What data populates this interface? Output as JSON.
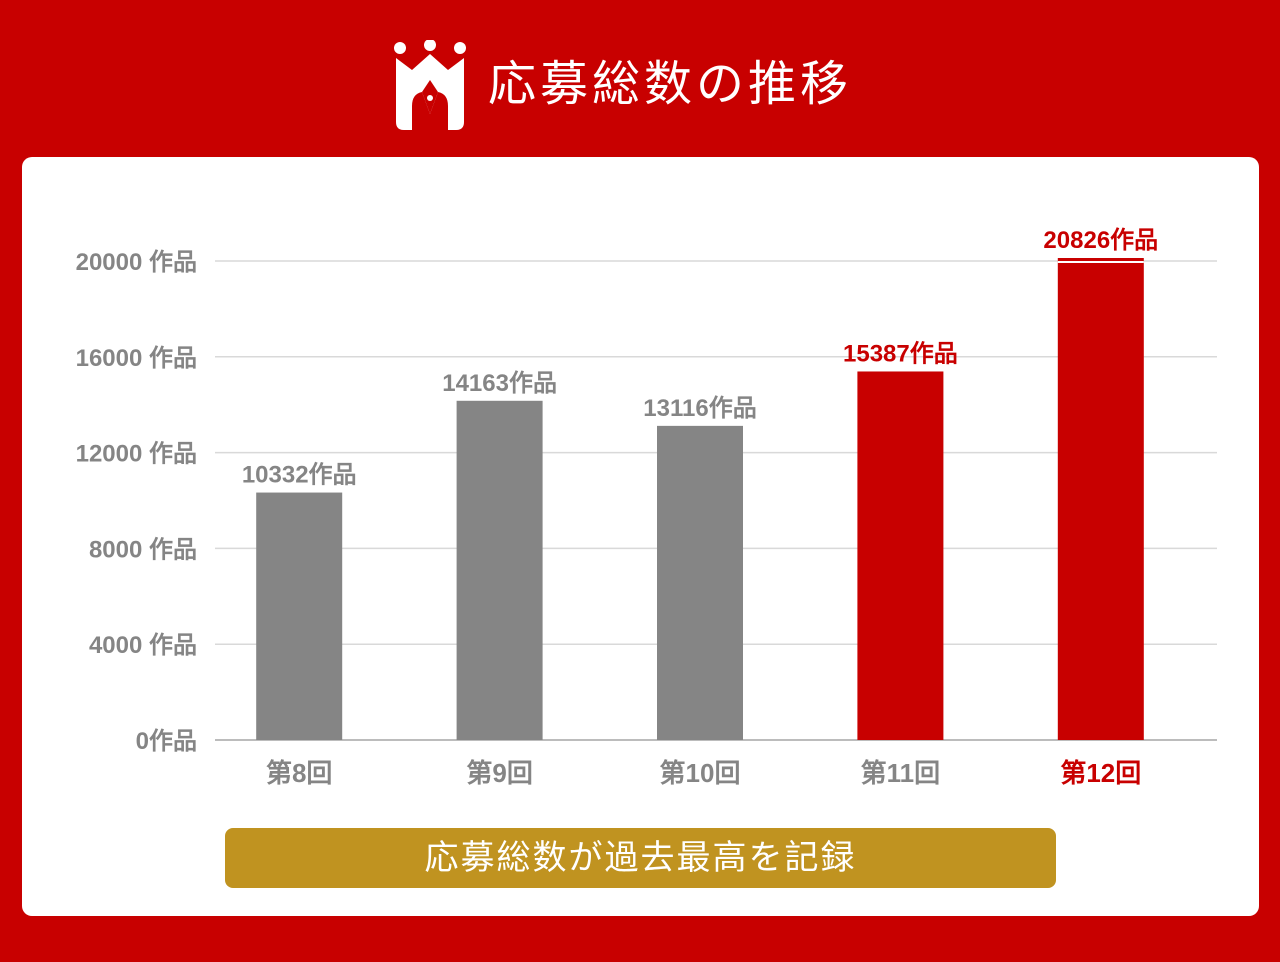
{
  "header": {
    "title": "応募総数の推移",
    "logo_icon": "crown-pen-icon"
  },
  "colors": {
    "background": "#c80000",
    "highlight": "#c80000",
    "normal": "#858585",
    "banner": "#c09320",
    "grid": "#d9d9d9"
  },
  "chart_data": {
    "type": "bar",
    "categories": [
      "第8回",
      "第9回",
      "第10回",
      "第11回",
      "第12回"
    ],
    "values": [
      10332,
      14163,
      13116,
      15387,
      20826
    ],
    "data_labels": [
      "10332作品",
      "14163作品",
      "13116作品",
      "15387作品",
      "20826作品"
    ],
    "highlighted": [
      false,
      false,
      false,
      true,
      true
    ],
    "yticks": [
      0,
      4000,
      8000,
      12000,
      16000,
      20000
    ],
    "ytick_labels": [
      "0作品",
      "4000 作品",
      "8000 作品",
      "12000 作品",
      "16000 作品",
      "20000 作品"
    ],
    "ylim": [
      0,
      20000
    ],
    "grid": true,
    "title": "",
    "xlabel": "",
    "ylabel": ""
  },
  "banner": {
    "text": "応募総数が過去最高を記録"
  }
}
